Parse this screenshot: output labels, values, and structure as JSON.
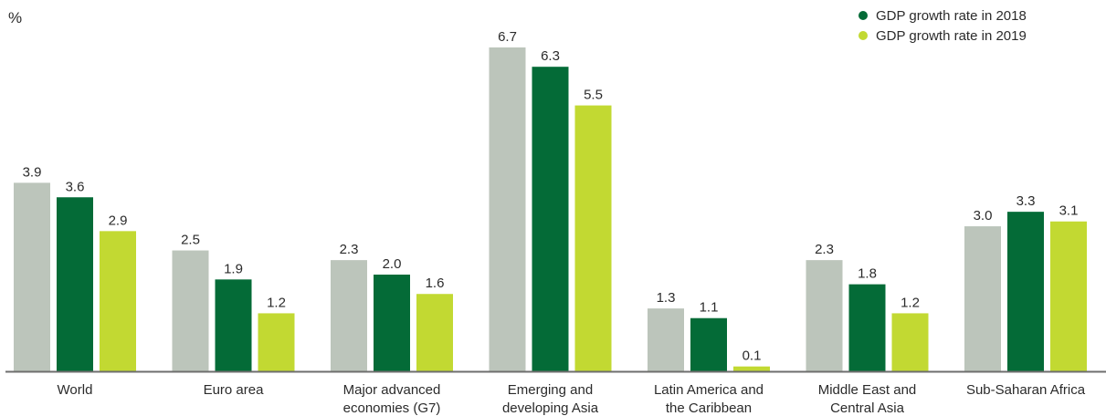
{
  "chart_data": {
    "type": "bar",
    "ylabel": "%",
    "categories": [
      [
        "World"
      ],
      [
        "Euro area"
      ],
      [
        "Major advanced",
        "economies (G7)"
      ],
      [
        "Emerging and",
        "developing Asia"
      ],
      [
        "Latin America and",
        "the Caribbean"
      ],
      [
        "Middle East and",
        "Central Asia"
      ],
      [
        "Sub-Saharan Africa"
      ]
    ],
    "series": [
      {
        "color": "#bcc5bb",
        "values": [
          3.9,
          2.5,
          2.3,
          6.7,
          1.3,
          2.3,
          3.0
        ]
      },
      {
        "name": "GDP growth rate in 2018",
        "color": "#046b37",
        "values": [
          3.6,
          1.9,
          2.0,
          6.3,
          1.1,
          1.8,
          3.3
        ]
      },
      {
        "name": "GDP growth rate in 2019",
        "color": "#c2d932",
        "values": [
          2.9,
          1.2,
          1.6,
          5.5,
          0.1,
          1.2,
          3.1
        ]
      }
    ],
    "ylim": [
      0,
      6.7
    ],
    "grid": false,
    "legend": "top-right"
  }
}
